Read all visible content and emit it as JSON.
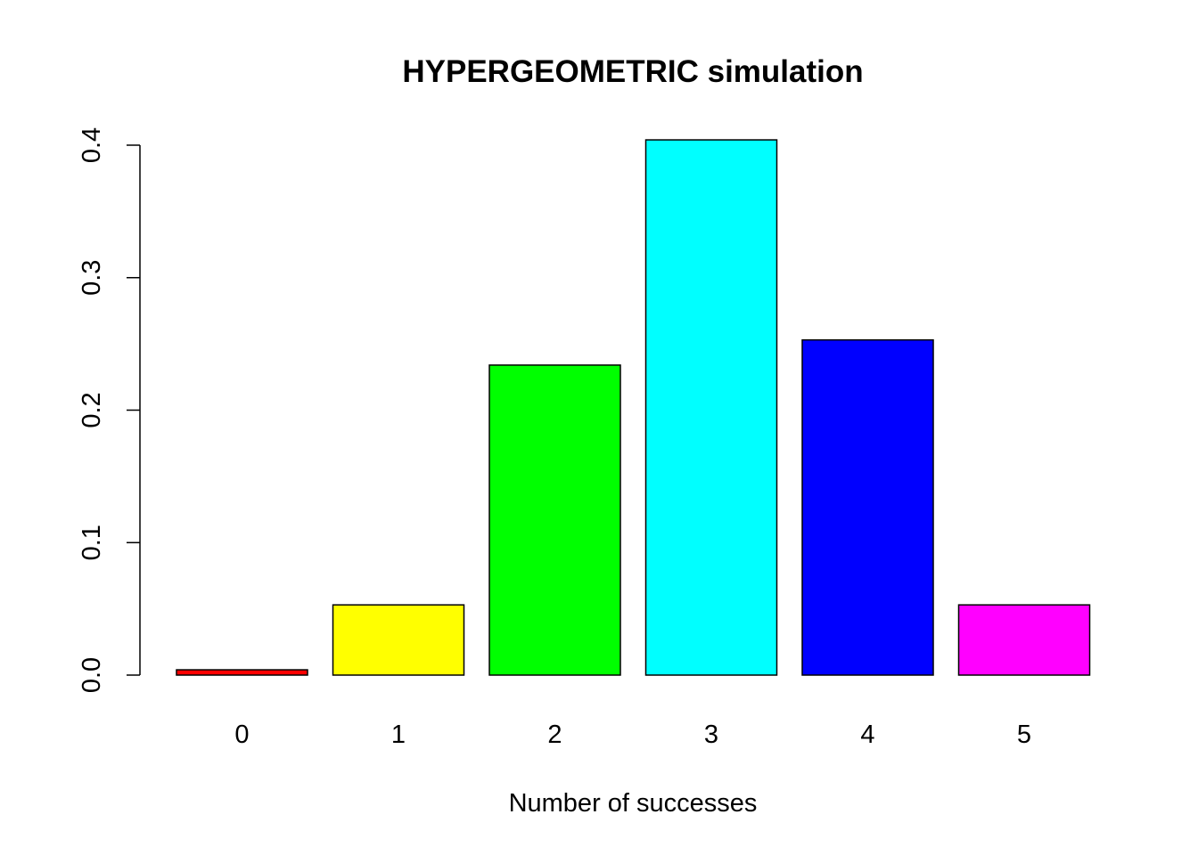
{
  "chart_data": {
    "type": "bar",
    "title": "HYPERGEOMETRIC simulation",
    "xlabel": "Number of successes",
    "ylabel": "",
    "categories": [
      "0",
      "1",
      "2",
      "3",
      "4",
      "5"
    ],
    "values": [
      0.004,
      0.053,
      0.234,
      0.404,
      0.253,
      0.053
    ],
    "colors": [
      "#FF0000",
      "#FFFF00",
      "#00FF00",
      "#00FFFF",
      "#0000FF",
      "#FF00FF"
    ],
    "ylim": [
      0,
      0.4
    ],
    "yticks": [
      0.0,
      0.1,
      0.2,
      0.3,
      0.4
    ],
    "ytick_labels": [
      "0.0",
      "0.1",
      "0.2",
      "0.3",
      "0.4"
    ],
    "grid": false,
    "legend": "none"
  }
}
